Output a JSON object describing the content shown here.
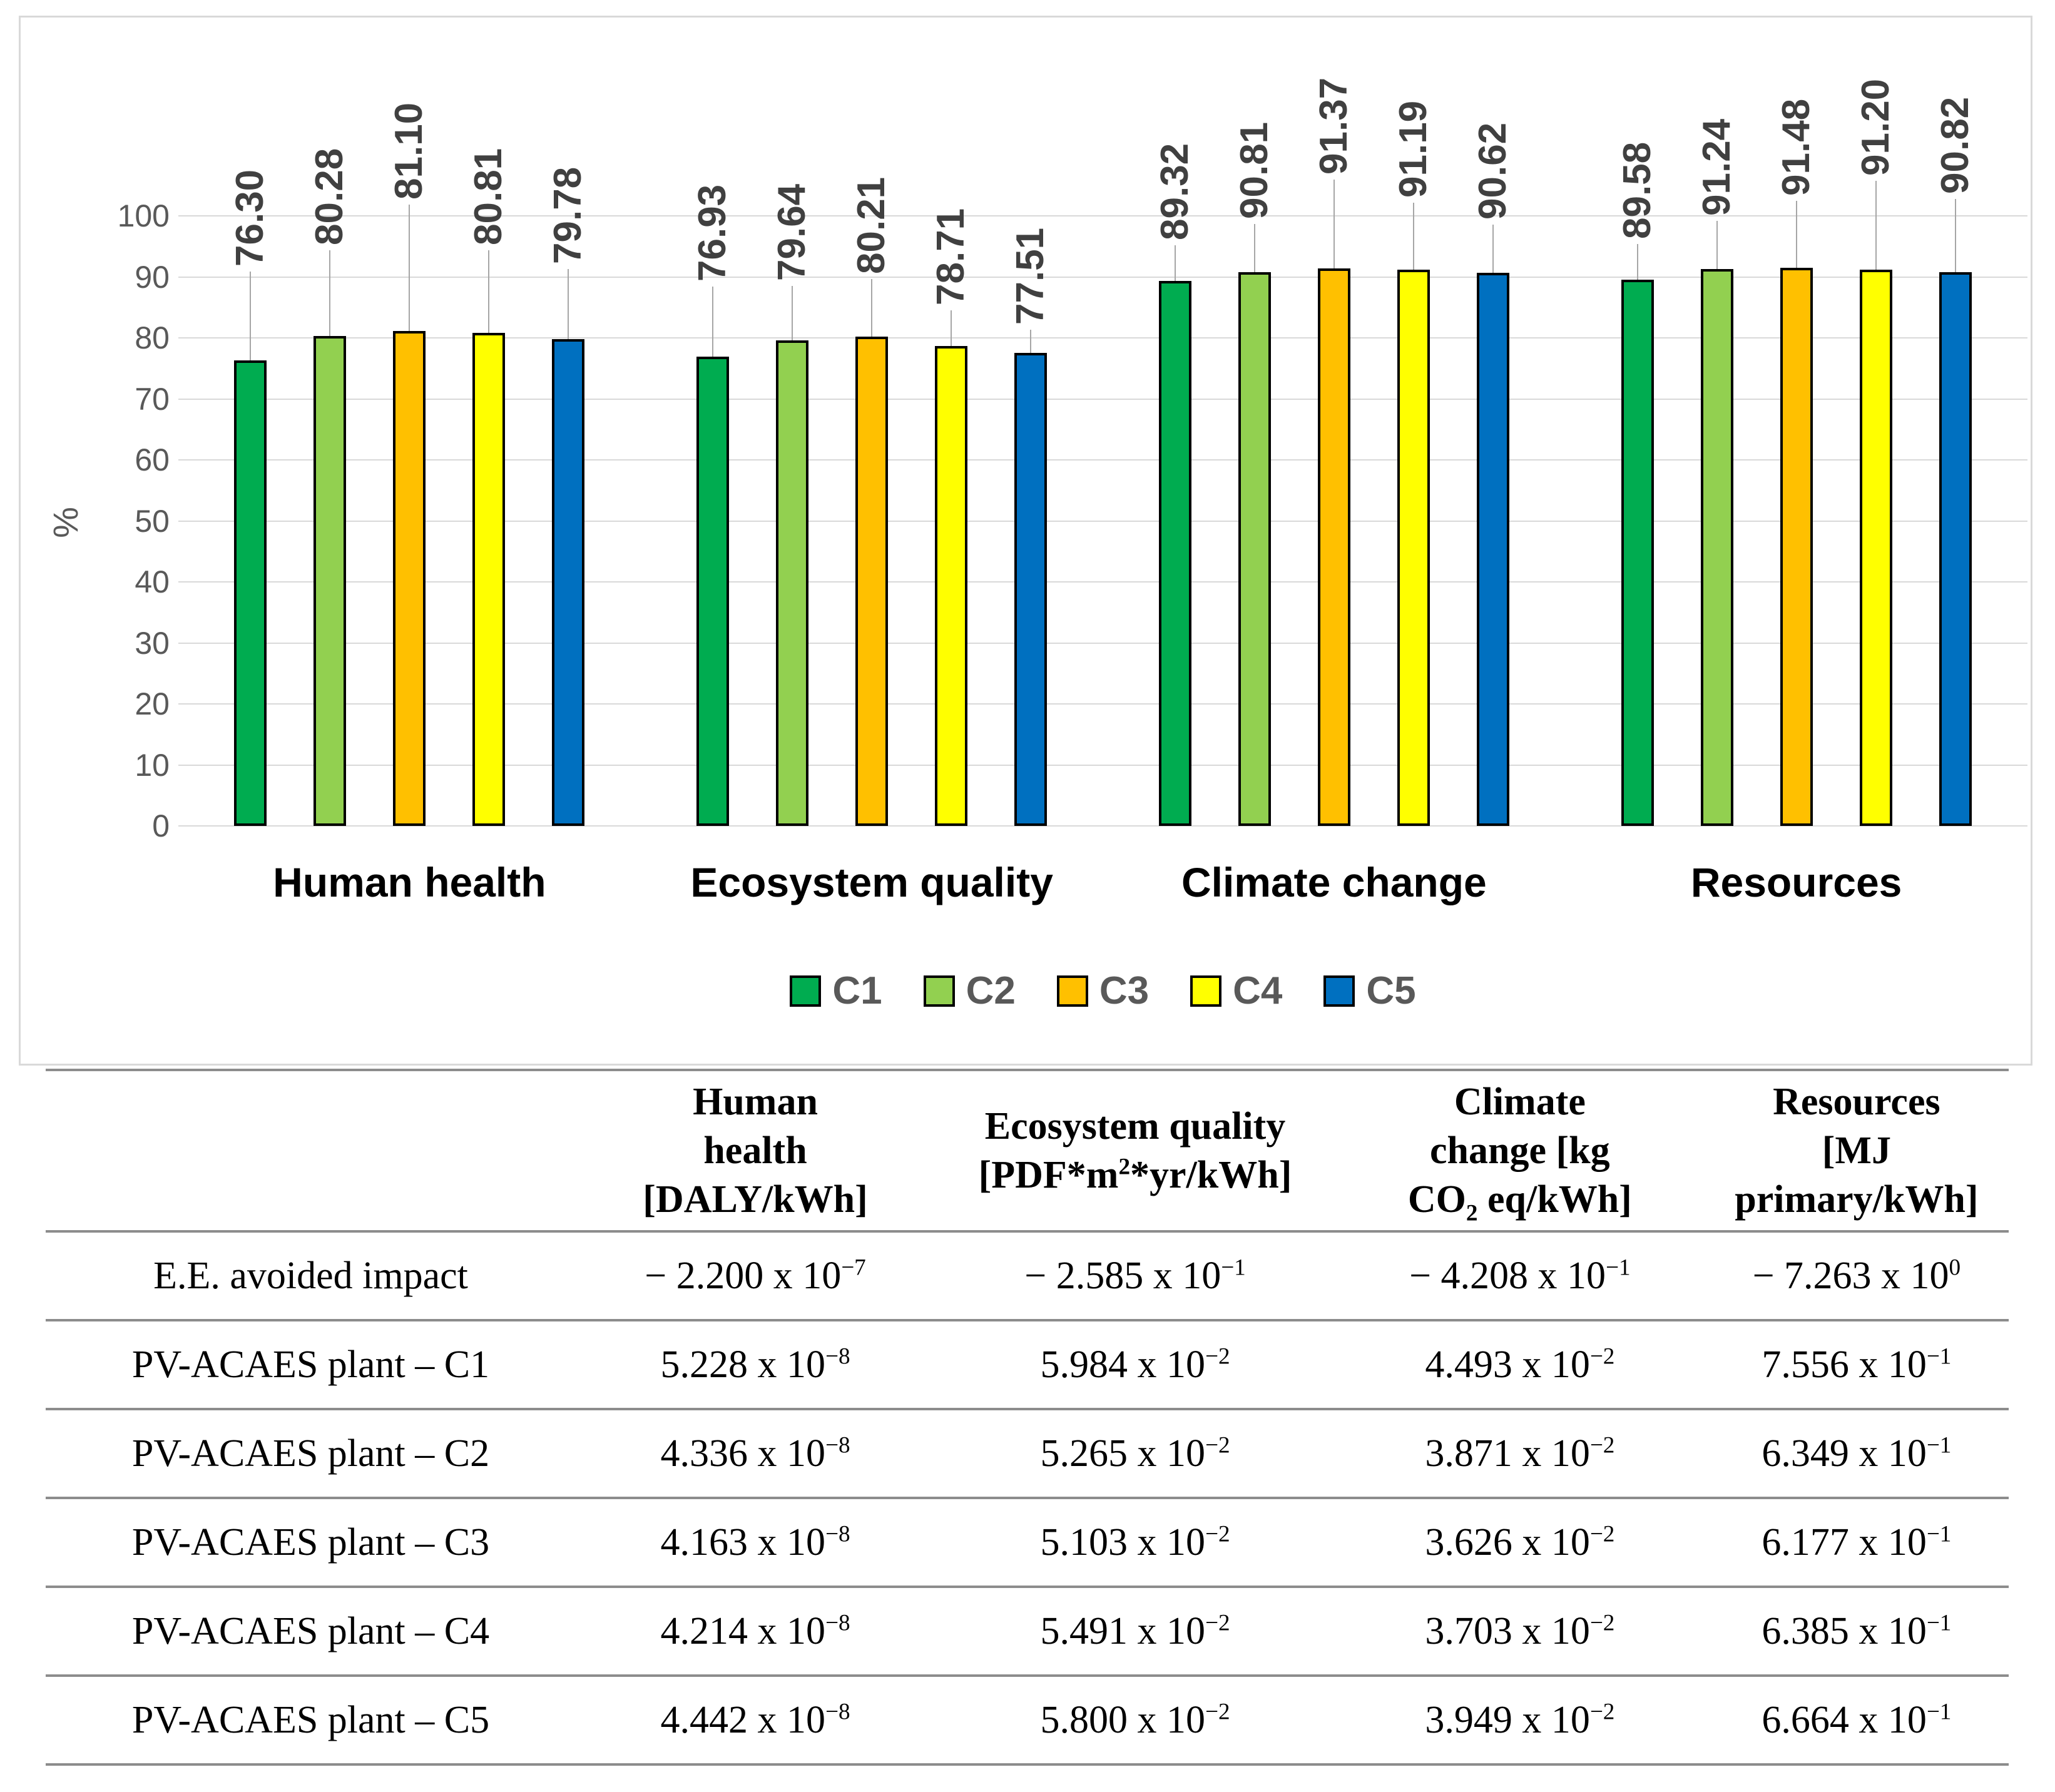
{
  "chart_data": {
    "type": "bar",
    "title": "",
    "xlabel": "",
    "ylabel": "%",
    "ylim": [
      0,
      100
    ],
    "y_tick_step": 10,
    "grid": true,
    "legend_position": "bottom",
    "value_label_decimals": 2,
    "categories": [
      "Human health",
      "Ecosystem quality",
      "Climate change",
      "Resources"
    ],
    "series": [
      {
        "name": "C1",
        "color": "#00AC50",
        "values": [
          76.3,
          76.93,
          89.32,
          89.58
        ]
      },
      {
        "name": "C2",
        "color": "#92D050",
        "values": [
          80.28,
          79.64,
          90.81,
          91.24
        ]
      },
      {
        "name": "C3",
        "color": "#FFC000",
        "values": [
          81.1,
          80.21,
          91.37,
          91.48
        ]
      },
      {
        "name": "C4",
        "color": "#FFFF00",
        "values": [
          80.81,
          78.71,
          91.19,
          91.2
        ]
      },
      {
        "name": "C5",
        "color": "#0070C0",
        "values": [
          79.78,
          77.51,
          90.62,
          90.82
        ]
      }
    ]
  },
  "table": {
    "headers": [
      "",
      "Human\nhealth\n[DALY/kWh]",
      "Ecosystem quality\n[PDF*m^{2}*yr/kWh]",
      "Climate\nchange [kg\nCO_{2} eq/kWh]",
      "Resources\n[MJ\nprimary/kWh]"
    ],
    "rows": [
      {
        "label": "E.E. avoided impact",
        "values": [
          "− 2.200 x 10^{−7}",
          "− 2.585 x 10^{−1}",
          "− 4.208 x 10^{−1}",
          "− 7.263 x 10^{0}"
        ]
      },
      {
        "label": "PV-ACAES plant – C1",
        "values": [
          "5.228 x 10^{−8}",
          "5.984 x 10^{−2}",
          "4.493 x 10^{−2}",
          "7.556 x 10^{−1}"
        ]
      },
      {
        "label": "PV-ACAES plant – C2",
        "values": [
          "4.336 x 10^{−8}",
          "5.265 x 10^{−2}",
          "3.871 x 10^{−2}",
          "6.349 x 10^{−1}"
        ]
      },
      {
        "label": "PV-ACAES plant – C3",
        "values": [
          "4.163 x 10^{−8}",
          "5.103 x 10^{−2}",
          "3.626 x 10^{−2}",
          "6.177 x 10^{−1}"
        ]
      },
      {
        "label": "PV-ACAES plant – C4",
        "values": [
          "4.214 x 10^{−8}",
          "5.491 x 10^{−2}",
          "3.703 x 10^{−2}",
          "6.385 x 10^{−1}"
        ]
      },
      {
        "label": "PV-ACAES plant – C5",
        "values": [
          "4.442 x 10^{−8}",
          "5.800 x 10^{−2}",
          "3.949 x 10^{−2}",
          "6.664 x 10^{−1}"
        ]
      }
    ]
  }
}
